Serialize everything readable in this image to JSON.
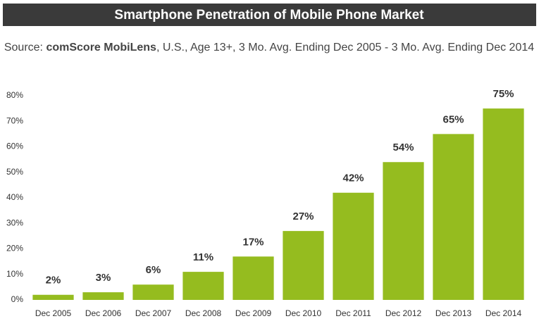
{
  "chart_data": {
    "type": "bar",
    "title": "Smartphone Penetration of Mobile Phone Market",
    "subtitle": [
      "Source:",
      "comScore MobiLens",
      ", U.S., Age 13+, 3 Mo. Avg. Ending Dec 2005 - 3 Mo. Avg. Ending Dec 2014"
    ],
    "categories": [
      "Dec 2005",
      "Dec 2006",
      "Dec 2007",
      "Dec 2008",
      "Dec 2009",
      "Dec 2010",
      "Dec 2011",
      "Dec 2012",
      "Dec 2013",
      "Dec 2014"
    ],
    "values": [
      2,
      3,
      6,
      11,
      17,
      27,
      42,
      54,
      65,
      75
    ],
    "value_labels": [
      "2%",
      "3%",
      "6%",
      "11%",
      "17%",
      "27%",
      "42%",
      "54%",
      "65%",
      "75%"
    ],
    "color": "#95bc1f",
    "ylim": [
      0,
      80
    ],
    "yticks": [
      {
        "value": 0,
        "label": "0%"
      },
      {
        "value": 10,
        "label": "10%"
      },
      {
        "value": 20,
        "label": "20%"
      },
      {
        "value": 30,
        "label": "30%"
      },
      {
        "value": 40,
        "label": "40%"
      },
      {
        "value": 50,
        "label": "50%"
      },
      {
        "value": 60,
        "label": "60%"
      },
      {
        "value": 70,
        "label": "70%"
      },
      {
        "value": 80,
        "label": "80%"
      }
    ],
    "grid": false
  }
}
